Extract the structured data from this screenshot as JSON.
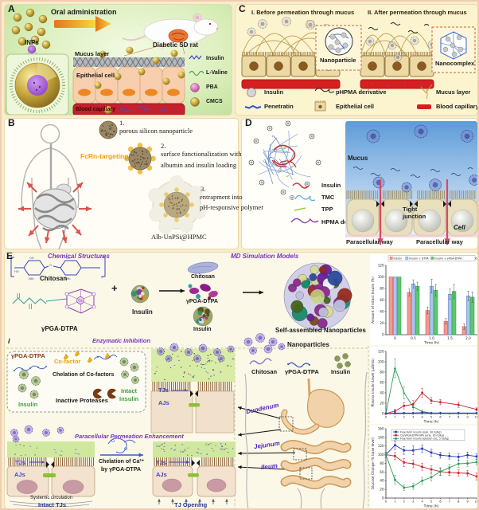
{
  "figure": {
    "panel_a": {
      "label": "A",
      "oral_admin": "Oral administration",
      "inps": "INPs",
      "rat": "Diabetic SD rat",
      "mucus": "Mucus layer",
      "epithelial": "Epithelial cell",
      "capillary": "Blood capillary",
      "legend": {
        "insulin": "Insulin",
        "l_valine": "L-Valine",
        "pba": "PBA",
        "cmcs": "CMCS"
      }
    },
    "panel_b": {
      "label": "B",
      "step1_num": "1.",
      "step1": "porous silicon nanoparticle",
      "fcrn": "FcRn-targeting",
      "step2_num": "2.",
      "step2_line1": "surface functionalization with",
      "step2_line2": "albumin and insulin loading",
      "step3_num": "3.",
      "step3_line1": "entrapment into",
      "step3_line2": "pH-responsive polymer",
      "product": "Alb-UnPSi@HPMC"
    },
    "panel_c": {
      "label": "C",
      "before": "I. Before permeation through mucus",
      "after": "II. After permeation through mucus",
      "nanoparticle": "Nanoparticle",
      "nanocomplex": "Nanocomplex",
      "legend": {
        "insulin": "Insulin",
        "penetratin": "Penetratin",
        "phpma": "pHPMA derivative",
        "epithelial": "Epithelial cell",
        "mucus": "Mucus layer",
        "capillary": "Blood capillary"
      }
    },
    "panel_d": {
      "label": "D",
      "mucus": "Mucus",
      "tight_junction": "Tight junction",
      "cell": "Cell",
      "paracellular": "Paracellular way",
      "legend": {
        "insulin": "Insulin",
        "tmc": "TMC",
        "tpp": "TPP",
        "hpma": "HPMA derivative"
      }
    },
    "panel_e": {
      "label": "E",
      "chem_title": "Chemical Structures",
      "md_title": "MD Simulation Models",
      "chitosan": "Chitosan",
      "pga_dtpa": "γPGA-DTPA",
      "insulin": "Insulin",
      "plus": "+",
      "self_assembled": "Self-assembled Nanoparticles",
      "sub_i": "i",
      "enzymatic_title": "Enzymatic Inhibition",
      "cofactor": "Co-factor",
      "chelation_cofactors": "Chelation of Co-factors",
      "inactive_proteases": "Inactive Proteases",
      "intact_line1": "Intact",
      "intact_line2": "Insulin",
      "tjs": "TJs",
      "ajs": "AJs",
      "paracellular_title": "Paracellular Permeation Enhancement",
      "chelation_ca_line1": "Chelation of Ca²⁺",
      "chelation_ca_line2": "by γPGA-DTPA",
      "systemic": "Systemic circulation",
      "intact_tjs": "Intact TJs",
      "tj_opening": "TJ Opening",
      "nanoparticles": "Nanoparticles",
      "duodenum": "Duodenum",
      "jejunum": "Jejunum",
      "ileum": "Ileum",
      "chem": {
        "oh": "OH",
        "ho": "HO",
        "nh2": "NH₂",
        "o": "O",
        "n": "n",
        "ca": "Ca"
      },
      "ca_ion": "Ca²⁺"
    }
  },
  "chart_data": [
    {
      "id": "bar_intact_insulin",
      "type": "bar",
      "note": "(n = 6)",
      "categories": [
        "0",
        "0.5",
        "1.0",
        "1.5",
        "2.0"
      ],
      "series": [
        {
          "name": "Insulin",
          "color": "#f4998e",
          "stroke": "#c24a44",
          "values": [
            100,
            73,
            42,
            23,
            14
          ],
          "errors": [
            0,
            6,
            6,
            5,
            5
          ]
        },
        {
          "name": "Insulin + DTPA",
          "color": "#a8c6ec",
          "stroke": "#5577bb",
          "values": [
            100,
            88,
            84,
            70,
            67
          ],
          "errors": [
            0,
            7,
            12,
            9,
            8
          ]
        },
        {
          "name": "Insulin + γPGA-DTPA",
          "color": "#5cc76c",
          "stroke": "#229a44",
          "values": [
            100,
            84,
            77,
            75,
            65
          ],
          "errors": [
            0,
            7,
            10,
            12,
            9
          ]
        }
      ],
      "xlabel": "Time (h)",
      "ylabel": "Amount of Intact Insulin (%)",
      "ylim": [
        0,
        120
      ],
      "yticks": [
        0,
        20,
        40,
        60,
        80,
        100,
        120
      ],
      "legend": true
    },
    {
      "id": "line_plasma_insulin",
      "type": "line",
      "x": [
        0,
        1,
        2,
        3,
        4,
        5,
        6,
        8,
        10
      ],
      "series": [
        {
          "name": "Free-form insulin solution (SC)",
          "color": "#2e9e57",
          "marker": "triangle",
          "values": [
            0,
            88,
            40,
            13,
            4,
            1,
            1,
            1,
            1
          ],
          "errors": [
            0,
            18,
            12,
            6,
            3,
            1,
            1,
            1,
            1
          ]
        },
        {
          "name": "CS/γPGA-DTPA NPs (oral)",
          "color": "#c9252b",
          "marker": "square",
          "values": [
            0,
            5,
            15,
            18,
            40,
            25,
            22,
            17,
            8
          ],
          "errors": [
            0,
            3,
            6,
            7,
            9,
            6,
            5,
            5,
            3
          ]
        },
        {
          "name": "Free-form insulin (oral)",
          "color": "#2736b5",
          "marker": "diamond",
          "values": [
            0,
            1,
            1,
            1,
            2,
            1,
            1,
            1,
            1
          ],
          "errors": [
            0,
            1,
            1,
            1,
            1,
            1,
            1,
            1,
            1
          ]
        }
      ],
      "xlabel": "Time (h)",
      "ylabel": "Plasma Insulin Level (μU/mL)",
      "xlim": [
        0,
        10
      ],
      "ylim": [
        0,
        120
      ],
      "xticks": [
        0,
        1,
        2,
        3,
        4,
        5,
        6,
        7,
        8,
        9,
        10
      ],
      "yticks": [
        0,
        20,
        40,
        60,
        80,
        100,
        120
      ]
    },
    {
      "id": "line_glucose_change",
      "type": "line",
      "x": [
        0,
        1,
        2,
        3,
        4,
        5,
        6,
        7,
        8,
        9,
        10
      ],
      "series": [
        {
          "name": "Free-form insulin (oral, 30 IU/kg)",
          "color": "#2736b5",
          "marker": "square",
          "values": [
            100,
            122,
            110,
            110,
            114,
            105,
            99,
            97,
            95,
            99,
            96
          ],
          "errors": [
            6,
            10,
            9,
            10,
            9,
            8,
            7,
            7,
            7,
            7,
            7
          ]
        },
        {
          "name": "CS/γPGA-DTPA NPs (oral, 30 IU/kg)",
          "color": "#c9252b",
          "marker": "square",
          "values": [
            100,
            97,
            82,
            79,
            72,
            66,
            61,
            59,
            58,
            57,
            50
          ],
          "errors": [
            5,
            8,
            9,
            9,
            8,
            8,
            8,
            7,
            7,
            7,
            8
          ]
        },
        {
          "name": "Free-form insulin solution (SC, 5 IU/kg)",
          "color": "#2e9e57",
          "marker": "square",
          "values": [
            100,
            42,
            24,
            27,
            40,
            48,
            61,
            70,
            79,
            80,
            83
          ],
          "errors": [
            5,
            10,
            7,
            7,
            8,
            9,
            9,
            8,
            8,
            7,
            7
          ]
        }
      ],
      "xlabel": "Time (h)",
      "ylabel": "Glucose Change (% base level)",
      "xlim": [
        0,
        10
      ],
      "ylim": [
        0,
        160
      ],
      "xticks": [
        0,
        1,
        2,
        3,
        4,
        5,
        6,
        7,
        8,
        9,
        10
      ],
      "yticks": [
        0,
        20,
        40,
        60,
        80,
        100,
        120,
        140,
        160
      ],
      "legend_position": "top"
    }
  ]
}
